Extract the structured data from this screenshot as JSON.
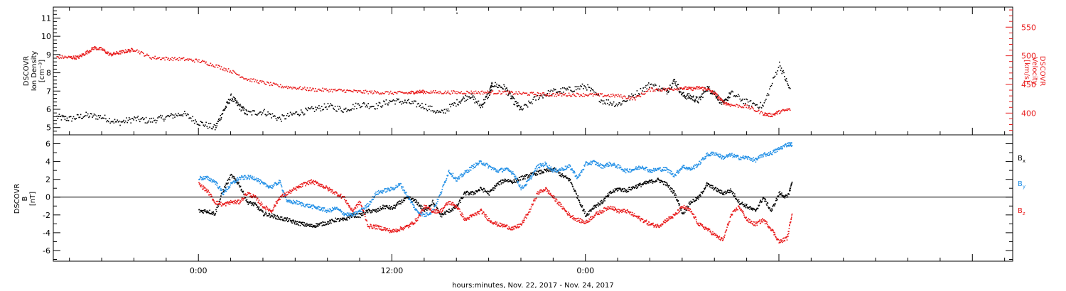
{
  "chart_data": [
    {
      "type": "scatter",
      "panel": "top",
      "ylabel_left": [
        "DSCOVR",
        "Ion Density",
        "[cm⁻³]"
      ],
      "ylabel_right": [
        "DSCOVR",
        "Velocity",
        "[km/s]"
      ],
      "ylim_left": [
        4.6,
        11.6
      ],
      "ylim_right": [
        362,
        585
      ],
      "yticks_left": [
        "5",
        "6",
        "7",
        "8",
        "9",
        "10",
        "11"
      ],
      "yticks_right": [
        "400",
        "450",
        "500",
        "550"
      ],
      "x_range_hours": [
        -9,
        50.5
      ],
      "series": [
        {
          "color": "#000000",
          "axis": "left",
          "x": [
            -8.8,
            -8,
            -7,
            -6,
            -5,
            -4,
            -3,
            -2,
            -1,
            0,
            1,
            1.5,
            2,
            2.5,
            3,
            4,
            5,
            6,
            7,
            8,
            9,
            10,
            11,
            12,
            13,
            14,
            15,
            16,
            16.8,
            17.5,
            18,
            18.2,
            19,
            19.5,
            20,
            21,
            22,
            23,
            24,
            25,
            26,
            27,
            28,
            29,
            29.5,
            30,
            30.5,
            31,
            31.5,
            32,
            32.5,
            33,
            34,
            35,
            36,
            36.7
          ],
          "y": [
            5.6,
            5.5,
            5.7,
            5.6,
            5.3,
            5.5,
            5.4,
            5.6,
            5.8,
            5.3,
            5.0,
            5.9,
            6.7,
            6.2,
            5.8,
            5.9,
            5.5,
            5.8,
            6.0,
            6.2,
            6.0,
            6.3,
            6.2,
            6.5,
            6.4,
            6.2,
            5.8,
            6.4,
            6.8,
            6.2,
            6.9,
            7.4,
            7.2,
            6.5,
            6.0,
            6.7,
            7.0,
            7.1,
            7.3,
            6.5,
            6.3,
            6.8,
            7.4,
            7.0,
            7.6,
            6.8,
            6.7,
            6.5,
            7.2,
            6.9,
            6.3,
            6.9,
            6.4,
            6.2,
            8.5,
            7.0
          ]
        },
        {
          "color": "#e8191a",
          "axis": "right",
          "x": [
            -8.8,
            -8,
            -7.5,
            -7,
            -6.5,
            -6,
            -5.5,
            -5,
            -4.5,
            -4,
            -3,
            -2,
            -1,
            0,
            1,
            2,
            3,
            4,
            5,
            6,
            7,
            8,
            9,
            10,
            11,
            12,
            13,
            13.5,
            14,
            15,
            16,
            17,
            18,
            19,
            20,
            21,
            22,
            23,
            24,
            25,
            26,
            27,
            28,
            29,
            30,
            30.5,
            31,
            31.5,
            32,
            32.5,
            33,
            34,
            35,
            35.5,
            36,
            36.7
          ],
          "y": [
            499,
            498,
            498,
            506,
            515,
            512,
            503,
            506,
            509,
            512,
            498,
            496,
            495,
            492,
            484,
            474,
            460,
            454,
            448,
            445,
            442,
            441,
            440,
            438,
            437,
            436,
            436,
            438,
            438,
            437,
            437,
            437,
            437,
            437,
            435,
            434,
            433,
            433,
            433,
            432,
            431,
            426,
            442,
            442,
            445,
            443,
            445,
            443,
            435,
            420,
            415,
            412,
            400,
            397,
            403,
            408
          ]
        }
      ]
    },
    {
      "type": "scatter",
      "panel": "bottom",
      "ylabel_left": [
        "DSCOVR",
        "B",
        "[nT]"
      ],
      "ylim": [
        -7.2,
        7
      ],
      "yticks": [
        "-6",
        "-4",
        "-2",
        "0",
        "2",
        "4",
        "6"
      ],
      "zero_line": true,
      "x_range_hours": [
        -9,
        50.5
      ],
      "series": [
        {
          "name": "Bx",
          "color": "#000000",
          "x": [
            0,
            0.5,
            1,
            1.5,
            2,
            2.5,
            3,
            3.5,
            4,
            4.5,
            5,
            5.5,
            6,
            6.5,
            7,
            7.5,
            8,
            8.5,
            9,
            9.5,
            10,
            10.5,
            11,
            11.5,
            12,
            12.5,
            13,
            13.5,
            14,
            14.5,
            15,
            15.5,
            16,
            16.5,
            17,
            17.5,
            18,
            18.5,
            19,
            19.5,
            20,
            20.5,
            21,
            21.5,
            22,
            22.5,
            23,
            23.5,
            24,
            24.5,
            25,
            25.5,
            26,
            26.5,
            27,
            27.5,
            28,
            28.5,
            29,
            29.5,
            30,
            30.5,
            31,
            31.5,
            32,
            32.5,
            33,
            33.5,
            34,
            34.5,
            35,
            35.5,
            36,
            36.5,
            36.8
          ],
          "y": [
            -1.5,
            -1.5,
            -1.8,
            0.8,
            2.5,
            1.5,
            -0.5,
            -0.8,
            -1.8,
            -2,
            -2.3,
            -2.5,
            -2.8,
            -3,
            -3.2,
            -3,
            -2.8,
            -2.5,
            -2.5,
            -2,
            -2,
            -1.5,
            -1.5,
            -1,
            -1.2,
            -0.5,
            0,
            -0.5,
            -1.5,
            -0.5,
            -2,
            -1.5,
            -1,
            0.5,
            0.5,
            1,
            0.5,
            1.5,
            2,
            1.8,
            2.2,
            2.5,
            2.8,
            3,
            3.2,
            2.5,
            2,
            0,
            -2,
            -1,
            -0.5,
            0.5,
            1,
            0.8,
            1.2,
            1.5,
            1.8,
            2,
            1.5,
            0.5,
            -1.8,
            -0.5,
            0,
            1.5,
            1,
            0.5,
            0.8,
            -0.5,
            -1,
            -1.5,
            0,
            -1.5,
            0.5,
            0,
            1.8
          ]
        },
        {
          "name": "By",
          "color": "#1f8ee6",
          "x": [
            0,
            0.5,
            1,
            1.5,
            2,
            2.5,
            3,
            3.5,
            4,
            4.5,
            5,
            5.5,
            6,
            6.5,
            7,
            7.5,
            8,
            8.5,
            9,
            9.5,
            10,
            10.5,
            11,
            11.5,
            12,
            12.5,
            13,
            13.5,
            14,
            14.5,
            15,
            15.5,
            16,
            16.5,
            17,
            17.5,
            18,
            18.5,
            19,
            19.5,
            20,
            20.5,
            21,
            21.5,
            22,
            22.5,
            23,
            23.5,
            24,
            24.5,
            25,
            25.5,
            26,
            26.5,
            27,
            27.5,
            28,
            28.5,
            29,
            29.5,
            30,
            30.5,
            31,
            31.5,
            32,
            32.5,
            33,
            33.5,
            34,
            34.5,
            35,
            35.5,
            36,
            36.5,
            36.8
          ],
          "y": [
            2.2,
            2.2,
            1.8,
            0.5,
            1.5,
            2.2,
            2.3,
            2.2,
            1.5,
            1.2,
            1.8,
            -0.5,
            -0.5,
            -0.8,
            -1,
            -1.2,
            -1.5,
            -1.2,
            -1.8,
            -2,
            -1.5,
            -0.8,
            0.5,
            0.8,
            1,
            1.5,
            0,
            -1.5,
            -2,
            -1.5,
            0.5,
            3,
            2,
            2.8,
            3.5,
            4,
            3.5,
            3,
            3.2,
            2.8,
            1,
            2,
            3.5,
            3.8,
            3,
            3.2,
            3.5,
            2.2,
            3.8,
            4,
            3.5,
            3.8,
            3.5,
            3,
            3.2,
            3.5,
            3,
            3.2,
            3.2,
            2.5,
            3.5,
            3.2,
            3.8,
            4.8,
            5,
            4.5,
            4.8,
            4.5,
            4.5,
            4.2,
            4.8,
            5,
            5.5,
            6,
            6
          ]
        },
        {
          "name": "Bz",
          "color": "#e8191a",
          "x": [
            0,
            0.5,
            1,
            1.5,
            2,
            2.5,
            3,
            3.5,
            4,
            4.5,
            5,
            5.5,
            6,
            6.5,
            7,
            7.5,
            8,
            8.5,
            9,
            9.5,
            10,
            10.5,
            11,
            11.5,
            12,
            12.5,
            13,
            13.5,
            14,
            14.5,
            15,
            15.5,
            16,
            16.5,
            17,
            17.5,
            18,
            18.5,
            19,
            19.5,
            20,
            20.5,
            21,
            21.5,
            22,
            22.5,
            23,
            23.5,
            24,
            24.5,
            25,
            25.5,
            26,
            26.5,
            27,
            27.5,
            28,
            28.5,
            29,
            29.5,
            30,
            30.5,
            31,
            31.5,
            32,
            32.5,
            33,
            33.5,
            34,
            34.5,
            35,
            35.5,
            36,
            36.5,
            36.8
          ],
          "y": [
            1.5,
            0.8,
            -0.5,
            -0.8,
            -0.5,
            -0.5,
            0.5,
            0,
            -1,
            -1.5,
            0,
            0.5,
            1,
            1.5,
            1.8,
            1.5,
            1,
            0.5,
            0,
            -1.5,
            -0.5,
            -3.2,
            -3.3,
            -3.5,
            -3.8,
            -3.5,
            -3.2,
            -2.5,
            -1,
            -1.5,
            -1.5,
            -0.5,
            -1,
            -2.5,
            -2,
            -1.5,
            -2.5,
            -3,
            -3.2,
            -3.5,
            -3,
            -1.5,
            0.5,
            1,
            0,
            -1,
            -2,
            -2.5,
            -2.8,
            -2,
            -1.5,
            -1,
            -1.5,
            -1.5,
            -2,
            -2.5,
            -3,
            -3.2,
            -2.5,
            -2,
            -1,
            -1.5,
            -3,
            -3.5,
            -4.2,
            -4.8,
            -2,
            -1,
            -2.5,
            -3,
            -2.5,
            -3.5,
            -5,
            -4.5,
            -1.5
          ]
        }
      ]
    }
  ],
  "x_ticks": [
    {
      "hours": 0,
      "label": "0:00"
    },
    {
      "hours": 12,
      "label": "12:00"
    },
    {
      "hours": 24,
      "label": "0:00"
    }
  ],
  "xlabel": "hours:minutes, Nov. 22, 2017 - Nov. 24, 2017",
  "legend": [
    {
      "main": "B",
      "sub": "x",
      "color": "#000000"
    },
    {
      "main": "B",
      "sub": "y",
      "color": "#1f8ee6"
    },
    {
      "main": "B",
      "sub": "z",
      "color": "#e8191a"
    }
  ],
  "stray_point": {
    "hours": 16,
    "value": 11.3
  }
}
